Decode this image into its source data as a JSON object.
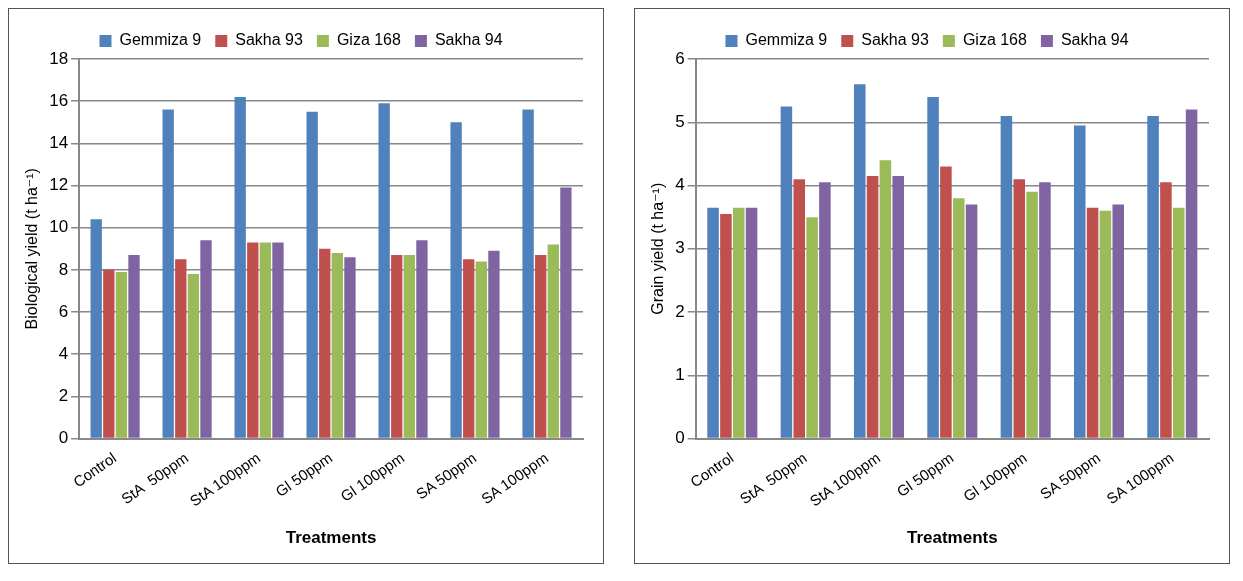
{
  "chart_data": [
    {
      "type": "bar",
      "xlabel": "Treatments",
      "ylabel": "Biological yield (t ha⁻¹)",
      "categories": [
        "Control",
        "StA  50ppm",
        "StA 100ppm",
        "Gl 50ppm",
        "Gl 100ppm",
        "SA 50ppm",
        "SA 100ppm"
      ],
      "series": [
        {
          "name": "Gemmiza 9",
          "color": "#4f81bd",
          "values": [
            10.4,
            15.6,
            16.2,
            15.5,
            15.9,
            15.0,
            15.6
          ]
        },
        {
          "name": "Sakha 93",
          "color": "#c0504d",
          "values": [
            8.0,
            8.5,
            9.3,
            9.0,
            8.7,
            8.5,
            8.7
          ]
        },
        {
          "name": "Giza 168",
          "color": "#9bbb59",
          "values": [
            7.9,
            7.8,
            9.3,
            8.8,
            8.7,
            8.4,
            9.2
          ]
        },
        {
          "name": "Sakha 94",
          "color": "#8064a2",
          "values": [
            8.7,
            9.4,
            9.3,
            8.6,
            9.4,
            8.9,
            11.9
          ]
        }
      ],
      "ylim": [
        0,
        18
      ],
      "yticks": [
        0,
        2,
        4,
        6,
        8,
        10,
        12,
        14,
        16,
        18
      ],
      "grid": "y",
      "legend": "top"
    },
    {
      "type": "bar",
      "xlabel": "Treatments",
      "ylabel": "Grain yield (t ha⁻¹)",
      "categories": [
        "Control",
        "StA  50ppm",
        "StA 100ppm",
        "Gl 50ppm",
        "Gl 100ppm",
        "SA 50ppm",
        "SA 100ppm"
      ],
      "series": [
        {
          "name": "Gemmiza 9",
          "color": "#4f81bd",
          "values": [
            3.65,
            5.25,
            5.6,
            5.4,
            5.1,
            4.95,
            5.1
          ]
        },
        {
          "name": "Sakha 93",
          "color": "#c0504d",
          "values": [
            3.55,
            4.1,
            4.15,
            4.3,
            4.1,
            3.65,
            4.05
          ]
        },
        {
          "name": "Giza 168",
          "color": "#9bbb59",
          "values": [
            3.65,
            3.5,
            4.4,
            3.8,
            3.9,
            3.6,
            3.65
          ]
        },
        {
          "name": "Sakha 94",
          "color": "#8064a2",
          "values": [
            3.65,
            4.05,
            4.15,
            3.7,
            4.05,
            3.7,
            5.2
          ]
        }
      ],
      "ylim": [
        0,
        6
      ],
      "yticks": [
        0,
        1,
        2,
        3,
        4,
        5,
        6
      ],
      "grid": "y",
      "legend": "top"
    }
  ]
}
